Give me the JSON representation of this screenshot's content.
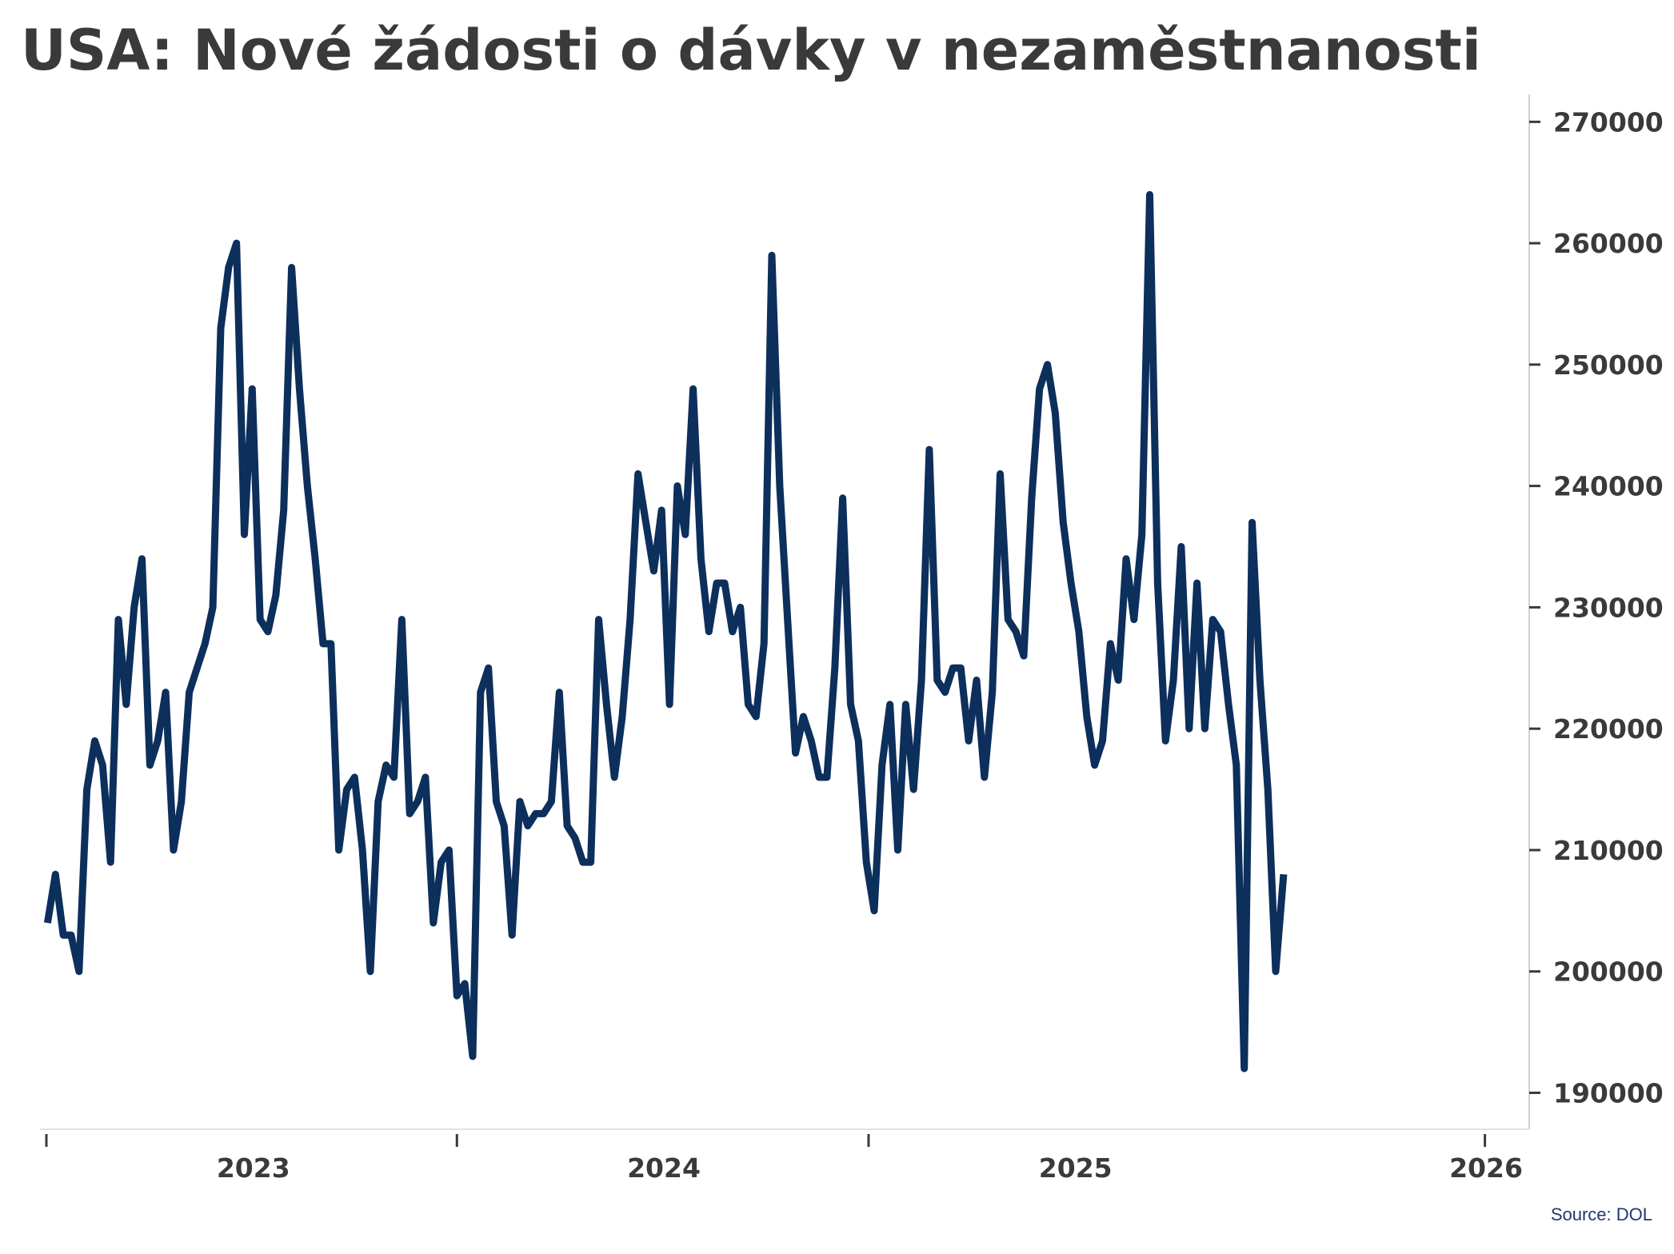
{
  "title": "USA: Nové žádosti o dávky v nezaměstnanosti",
  "source": "Source: DOL",
  "colors": {
    "line": "#0c2f5c",
    "text": "#3a3a3a",
    "axis": "#3a3a3a"
  },
  "chart_data": {
    "type": "line",
    "title": "USA: Nové žádosti o dávky v nezaměstnanosti",
    "xlabel": "",
    "ylabel": "",
    "y_axis_side": "right",
    "grid": false,
    "legend": "none",
    "xlim": [
      "2022-07-01",
      "2026-01-01"
    ],
    "ylim": [
      187000,
      272000
    ],
    "y_ticks": [
      190000,
      200000,
      210000,
      220000,
      230000,
      240000,
      250000,
      260000,
      270000
    ],
    "y_tick_labels": [
      "190000",
      "200000",
      "210000",
      "220000",
      "230000",
      "240000",
      "250000",
      "260000",
      "270000"
    ],
    "x_tick_positions": [
      "2022-07-01",
      "2023-07-01",
      "2024-07-01",
      "2025-12-31"
    ],
    "x_labels": [
      {
        "label": "2023",
        "at": "2023-01-01"
      },
      {
        "label": "2024",
        "at": "2024-01-01"
      },
      {
        "label": "2025",
        "at": "2025-01-01"
      },
      {
        "label": "2026",
        "at": "2026-01-01"
      }
    ],
    "series": [
      {
        "frequency": "weekly",
        "start": "2022-07-02",
        "values": [
          204000,
          208000,
          203000,
          203000,
          200000,
          215000,
          219000,
          217000,
          209000,
          229000,
          222000,
          230000,
          234000,
          217000,
          219000,
          223000,
          210000,
          214000,
          223000,
          225000,
          227000,
          230000,
          253000,
          258000,
          260000,
          236000,
          248000,
          229000,
          228000,
          231000,
          238000,
          258000,
          248000,
          240000,
          234000,
          227000,
          227000,
          210000,
          215000,
          216000,
          210000,
          200000,
          214000,
          217000,
          216000,
          229000,
          213000,
          214000,
          216000,
          204000,
          209000,
          210000,
          198000,
          199000,
          193000,
          223000,
          225000,
          214000,
          212000,
          203000,
          214000,
          212000,
          213000,
          213000,
          214000,
          223000,
          212000,
          211000,
          209000,
          209000,
          229000,
          222000,
          216000,
          221000,
          229000,
          241000,
          237000,
          233000,
          238000,
          222000,
          240000,
          236000,
          248000,
          234000,
          228000,
          232000,
          232000,
          228000,
          230000,
          222000,
          221000,
          227000,
          259000,
          240000,
          229000,
          218000,
          221000,
          219000,
          216000,
          216000,
          225000,
          239000,
          222000,
          219000,
          209000,
          205000,
          217000,
          222000,
          210000,
          222000,
          215000,
          224000,
          243000,
          224000,
          223000,
          225000,
          225000,
          219000,
          224000,
          216000,
          223000,
          241000,
          229000,
          228000,
          226000,
          239000,
          248000,
          250000,
          246000,
          237000,
          232000,
          228000,
          221000,
          217000,
          219000,
          227000,
          224000,
          234000,
          229000,
          236000,
          264000,
          232000,
          219000,
          224000,
          235000,
          220000,
          232000,
          220000,
          229000,
          228000,
          222000,
          217000,
          192000,
          237000,
          224000,
          215000,
          200000,
          208000
        ]
      }
    ]
  }
}
